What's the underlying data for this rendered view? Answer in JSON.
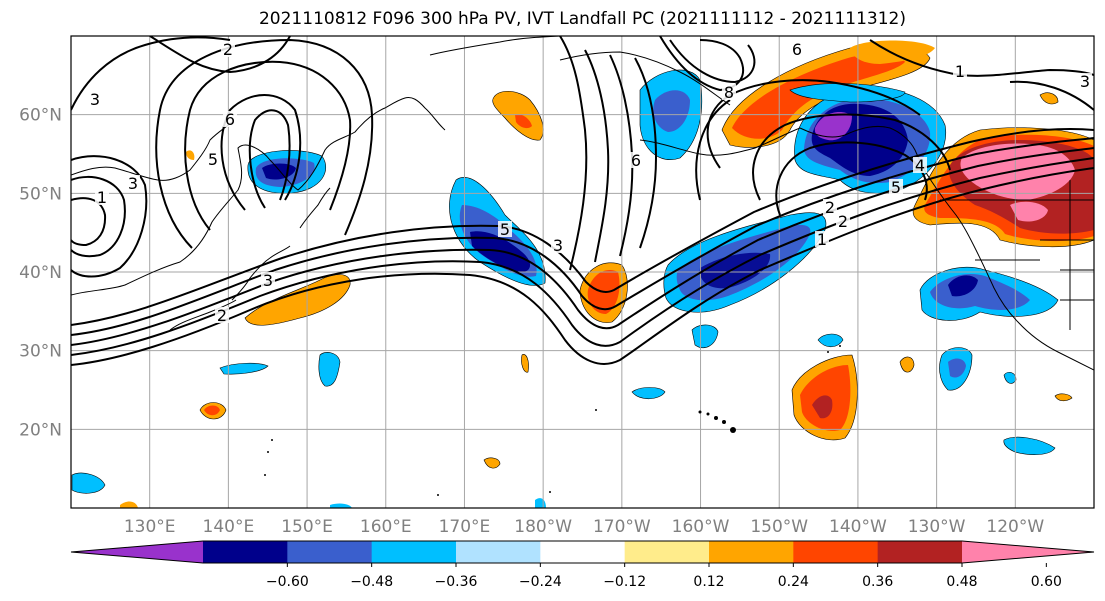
{
  "title": "2021110812 F096 300 hPa PV, IVT Landfall PC (2021111112 - 2021111312)",
  "lon_ticks": [
    "130°E",
    "140°E",
    "150°E",
    "160°E",
    "170°E",
    "180°W",
    "170°W",
    "160°W",
    "150°W",
    "140°W",
    "130°W",
    "120°W"
  ],
  "lat_ticks": [
    "60°N",
    "50°N",
    "40°N",
    "30°N",
    "20°N"
  ],
  "extent": {
    "lon_min": 120,
    "lon_max": 250,
    "lat_min": 10,
    "lat_max": 70
  },
  "colorbar": {
    "colors": [
      "#9932cc",
      "#00008b",
      "#3a5fcd",
      "#00bfff",
      "#b0e2ff",
      "#ffffff",
      "#ffec8b",
      "#ffa500",
      "#ff4500",
      "#b22222",
      "#ff82ab"
    ],
    "labels": [
      "−0.60",
      "−0.48",
      "−0.36",
      "−0.24",
      "−0.12",
      "0.12",
      "0.24",
      "0.36",
      "0.48",
      "0.60"
    ]
  },
  "contour_labels": [
    "2",
    "3",
    "6",
    "5",
    "1",
    "3",
    "3",
    "2",
    "3",
    "6",
    "8",
    "5",
    "6",
    "1",
    "3",
    "2",
    "1",
    "2",
    "4",
    "5"
  ]
}
